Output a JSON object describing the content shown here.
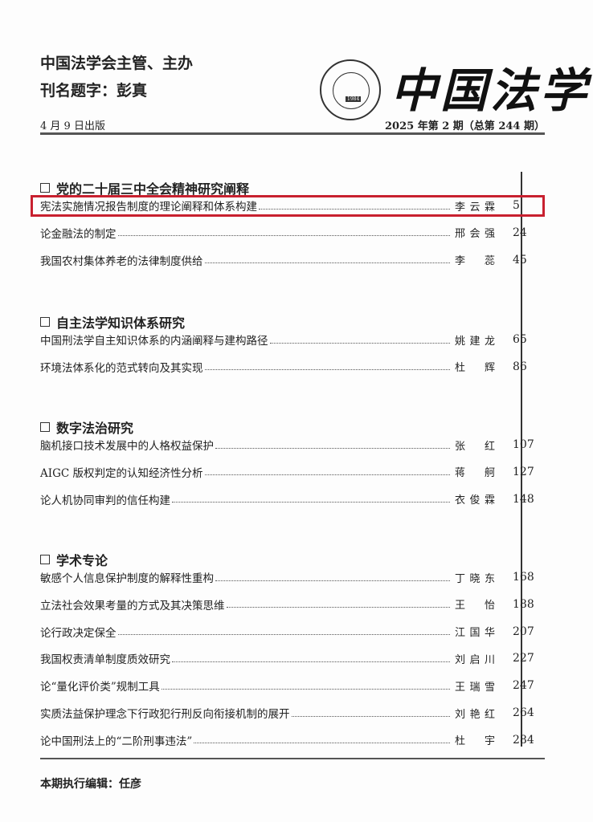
{
  "header": {
    "publisher": "中国法学会主管、主办",
    "inscription": "刊名题字：彭真",
    "pub_date": "4 月 9 日出版",
    "issue": "2025 年第 2 期（总第 244 期）",
    "journal_title": "中国法学",
    "seal_text": "CHINA LEGAL SCIENCE 1984"
  },
  "highlight_color": "#c8202f",
  "sections": [
    {
      "title": "党的二十届三中全会精神研究阐释",
      "items": [
        {
          "title": "宪法实施情况报告制度的理论阐释和体系构建",
          "author": "李云霖",
          "page": "5",
          "highlighted": true
        },
        {
          "title": "论金融法的制定",
          "author": "邢会强",
          "page": "24"
        },
        {
          "title": "我国农村集体养老的法律制度供给",
          "author": "李蕊",
          "page": "45"
        }
      ]
    },
    {
      "title": "自主法学知识体系研究",
      "items": [
        {
          "title": "中国刑法学自主知识体系的内涵阐释与建构路径",
          "author": "姚建龙",
          "page": "65"
        },
        {
          "title": "环境法体系化的范式转向及其实现",
          "author": "杜辉",
          "page": "86"
        }
      ]
    },
    {
      "title": "数字法治研究",
      "items": [
        {
          "title": "脑机接口技术发展中的人格权益保护",
          "author": "张红",
          "page": "107"
        },
        {
          "title": "AIGC 版权判定的认知经济性分析",
          "author": "蒋舸",
          "page": "127"
        },
        {
          "title": "论人机协同审判的信任构建",
          "author": "衣俊霖",
          "page": "148"
        }
      ]
    },
    {
      "title": "学术专论",
      "items": [
        {
          "title": "敏感个人信息保护制度的解释性重构",
          "author": "丁晓东",
          "page": "168"
        },
        {
          "title": "立法社会效果考量的方式及其决策思维",
          "author": "王怡",
          "page": "188"
        },
        {
          "title": "论行政决定保全",
          "author": "江国华",
          "page": "207"
        },
        {
          "title": "我国权责清单制度质效研究",
          "author": "刘启川",
          "page": "227"
        },
        {
          "title": "论“量化评价类”规制工具",
          "author": "王瑞雪",
          "page": "247"
        },
        {
          "title": "实质法益保护理念下行政犯行刑反向衔接机制的展开",
          "author": "刘艳红",
          "page": "264"
        },
        {
          "title": "论中国刑法上的“二阶刑事违法”",
          "author": "杜宇",
          "page": "284"
        }
      ]
    }
  ],
  "footer": {
    "editor": "本期执行编辑：任彦"
  }
}
